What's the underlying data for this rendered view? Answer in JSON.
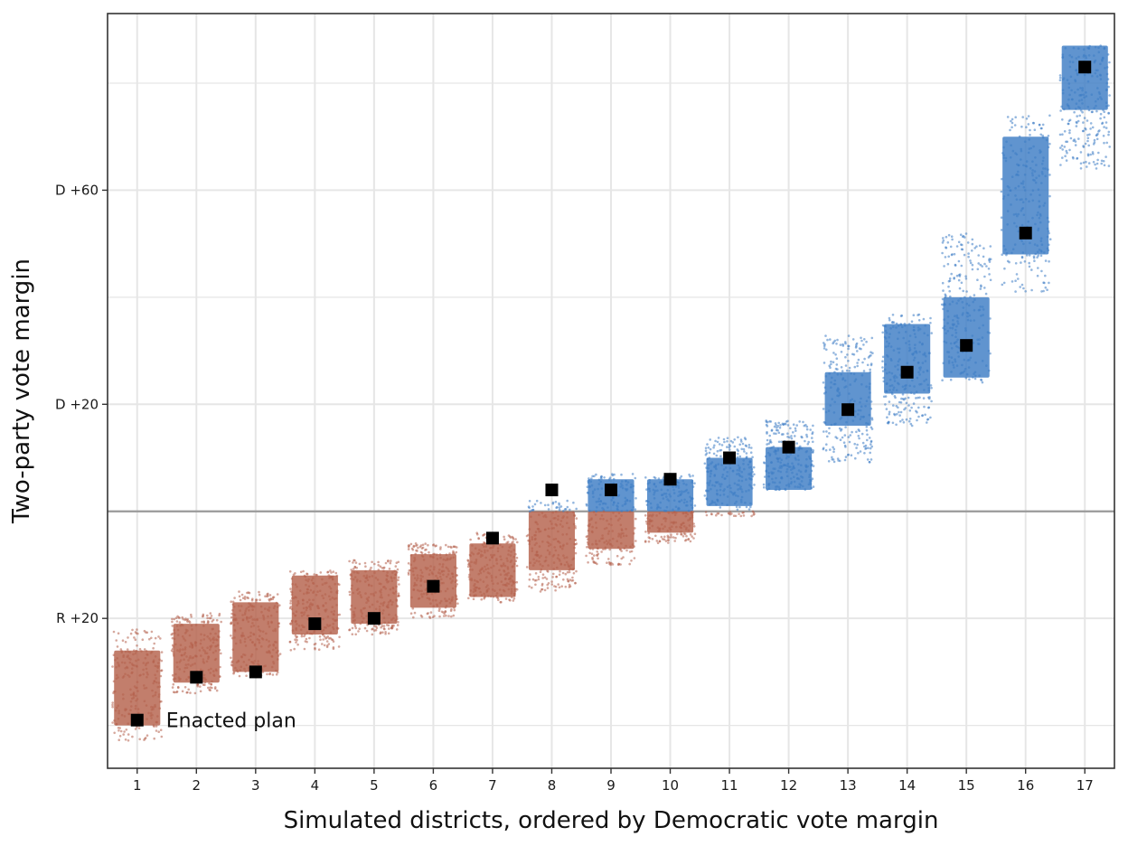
{
  "chart_data": {
    "type": "scatter",
    "title": "",
    "xlabel": "Simulated districts, ordered by Democratic vote margin",
    "ylabel": "Two-party vote margin",
    "categories": [
      "1",
      "2",
      "3",
      "4",
      "5",
      "6",
      "7",
      "8",
      "9",
      "10",
      "11",
      "12",
      "13",
      "14",
      "15",
      "16",
      "17"
    ],
    "y_unit_note": "signed margin, positive = Democratic",
    "ylim": [
      -48,
      93
    ],
    "y_ticks": [
      {
        "value": -20,
        "label": "R +20"
      },
      {
        "value": 20,
        "label": "D +20"
      },
      {
        "value": 60,
        "label": "D +60"
      }
    ],
    "reference_line_y": 0,
    "grid": true,
    "colors": {
      "democratic": "#3d7cc4",
      "republican": "#b5614c",
      "enacted": "#000000",
      "reference_line": "#9a9a9a",
      "grid": "#e6e6e6",
      "panel_border": "#333333"
    },
    "simulated_ranges": [
      {
        "district": 1,
        "min": -43,
        "max": -22,
        "dense_min": -40,
        "dense_max": -26
      },
      {
        "district": 2,
        "min": -34,
        "max": -19,
        "dense_min": -32,
        "dense_max": -21
      },
      {
        "district": 3,
        "min": -31,
        "max": -15,
        "dense_min": -30,
        "dense_max": -17
      },
      {
        "district": 4,
        "min": -26,
        "max": -11,
        "dense_min": -23,
        "dense_max": -12
      },
      {
        "district": 5,
        "min": -23,
        "max": -9,
        "dense_min": -21,
        "dense_max": -11
      },
      {
        "district": 6,
        "min": -20,
        "max": -6,
        "dense_min": -18,
        "dense_max": -8
      },
      {
        "district": 7,
        "min": -17,
        "max": -4,
        "dense_min": -16,
        "dense_max": -6
      },
      {
        "district": 8,
        "min": -15,
        "max": 2,
        "dense_min": -11,
        "dense_max": 0
      },
      {
        "district": 9,
        "min": -10,
        "max": 7,
        "dense_min": -7,
        "dense_max": 6
      },
      {
        "district": 10,
        "min": -6,
        "max": 7,
        "dense_min": -4,
        "dense_max": 6
      },
      {
        "district": 11,
        "min": -1,
        "max": 14,
        "dense_min": 1,
        "dense_max": 10
      },
      {
        "district": 12,
        "min": 4,
        "max": 17,
        "dense_min": 4,
        "dense_max": 12
      },
      {
        "district": 13,
        "min": 9,
        "max": 33,
        "dense_min": 16,
        "dense_max": 26
      },
      {
        "district": 14,
        "min": 16,
        "max": 37,
        "dense_min": 22,
        "dense_max": 35
      },
      {
        "district": 15,
        "min": 24,
        "max": 52,
        "dense_min": 25,
        "dense_max": 40
      },
      {
        "district": 16,
        "min": 41,
        "max": 74,
        "dense_min": 48,
        "dense_max": 70
      },
      {
        "district": 17,
        "min": 64,
        "max": 87,
        "dense_min": 75,
        "dense_max": 87
      }
    ],
    "series": [
      {
        "name": "Enacted plan",
        "values": [
          -39,
          -31,
          -30,
          -21,
          -20,
          -14,
          -5,
          4,
          4,
          6,
          10,
          12,
          19,
          26,
          31,
          52,
          83
        ]
      }
    ],
    "annotations": [
      {
        "text": "Enacted plan",
        "district": 1
      }
    ]
  }
}
